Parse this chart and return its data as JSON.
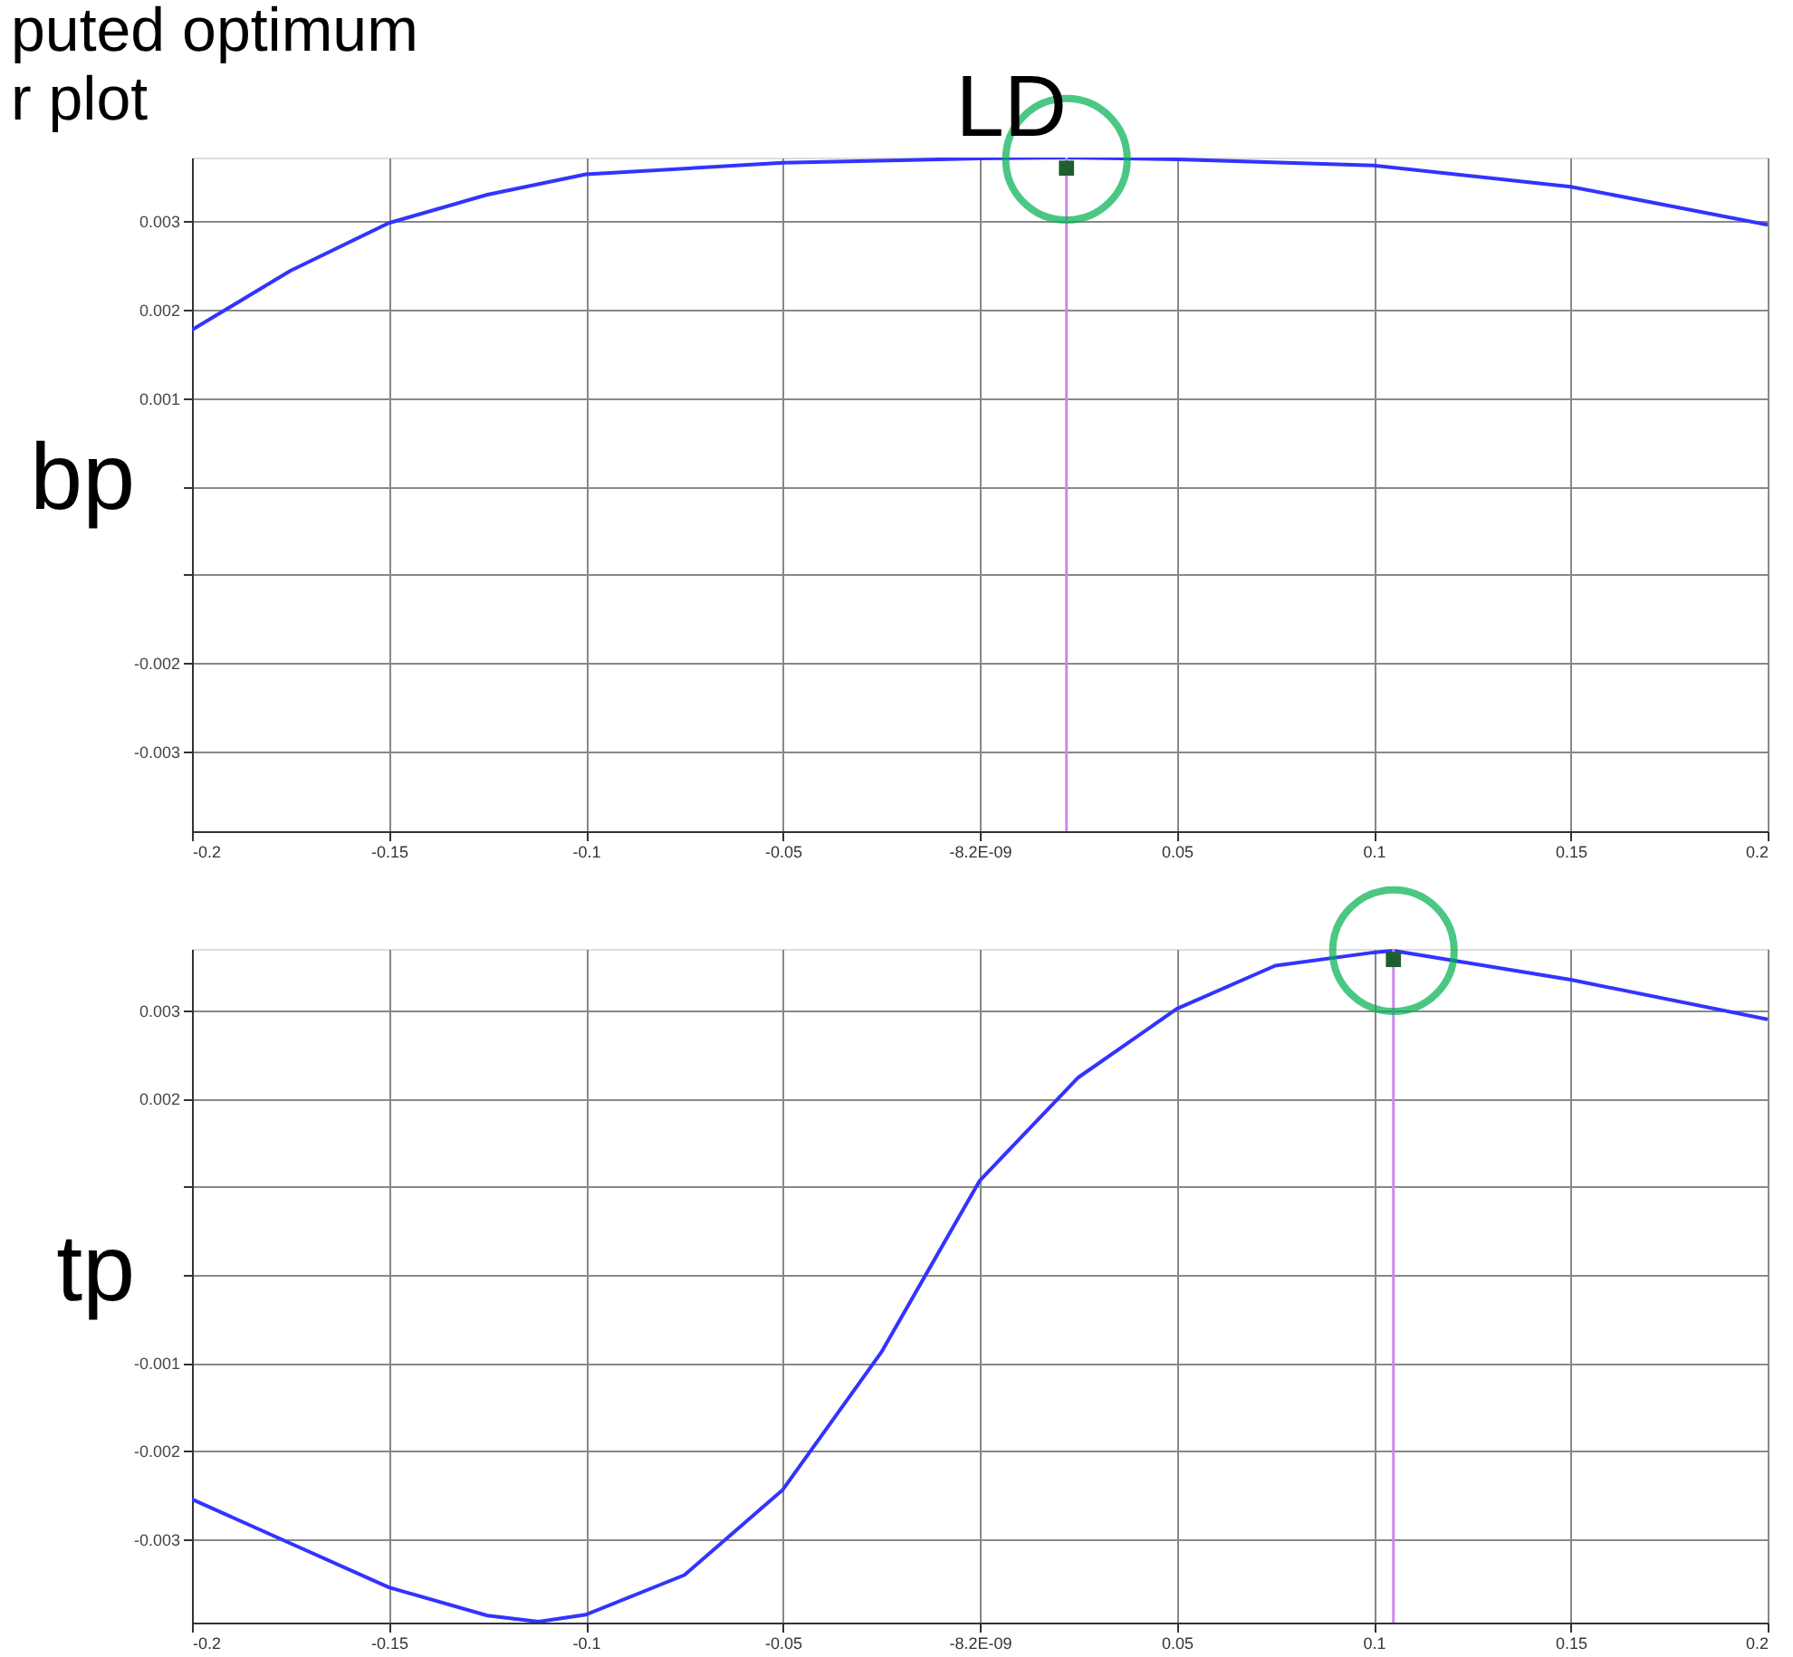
{
  "chart_data": [
    {
      "type": "line",
      "title": "puted optimum\nr plot",
      "ylabel": "bp",
      "annotations": [
        "LD"
      ],
      "grid": true,
      "xlim": [
        -0.2,
        0.2
      ],
      "ylim": [
        -0.0039,
        0.00372
      ],
      "xticks": [
        -0.2,
        -0.15,
        -0.1,
        -0.05,
        {
          "value": -8.2e-09,
          "label": "-8.2E-09"
        },
        0.05,
        0.1,
        0.15,
        0.2
      ],
      "yticks": [
        -0.003,
        -0.002,
        {
          "value": -0.001,
          "label": null
        },
        {
          "value": 0,
          "label": null
        },
        0.001,
        0.002,
        0.003
      ],
      "series": [
        {
          "color": "#3333ff",
          "x": [
            -0.2,
            -0.175,
            -0.15,
            -0.125,
            -0.1,
            -0.05,
            0,
            0.022,
            0.05,
            0.1,
            0.15,
            0.2
          ],
          "values": [
            0.00177,
            0.00244,
            0.00298,
            0.0033,
            0.00353,
            0.00366,
            0.00371,
            0.00372,
            0.0037,
            0.00363,
            0.00339,
            0.00296
          ]
        },
        {
          "type": "scatter",
          "marker": "square",
          "color": "#1f5f2f",
          "x": [
            0.022
          ],
          "values": [
            0.0036
          ]
        },
        {
          "type": "scatter",
          "marker": "circle",
          "color": "#00b050",
          "x": [
            0.022
          ],
          "values": [
            0.0037
          ]
        }
      ],
      "ref_lines": [
        {
          "axis": "x",
          "value": 0.022,
          "color": "#cc88ee"
        }
      ]
    },
    {
      "type": "line",
      "ylabel": "tp",
      "grid": true,
      "xlim": [
        -0.2,
        0.2
      ],
      "ylim": [
        -0.00395,
        0.0037
      ],
      "xticks": [
        -0.2,
        -0.15,
        -0.1,
        -0.05,
        {
          "value": -8.2e-09,
          "label": "-8.2E-09"
        },
        0.05,
        0.1,
        0.15,
        0.2
      ],
      "yticks": [
        -0.003,
        -0.002,
        -0.001,
        {
          "value": 0,
          "label": null
        },
        {
          "value": 0.001,
          "label": null
        },
        0.002,
        0.003
      ],
      "series": [
        {
          "color": "#3333ff",
          "x": [
            -0.2,
            -0.175,
            -0.15,
            -0.125,
            -0.112,
            -0.1,
            -0.075,
            -0.05,
            -0.025,
            0,
            0.025,
            0.05,
            0.075,
            0.1,
            0.105,
            0.15,
            0.2
          ],
          "values": [
            -0.00255,
            -0.00305,
            -0.00355,
            -0.00387,
            -0.00394,
            -0.00386,
            -0.00341,
            -0.00244,
            -0.00088,
            0.00107,
            0.00224,
            0.00302,
            0.00351,
            0.00366,
            0.00368,
            0.00335,
            0.0029
          ]
        },
        {
          "type": "scatter",
          "marker": "square",
          "color": "#1f5f2f",
          "x": [
            0.105
          ],
          "values": [
            0.00358
          ]
        },
        {
          "type": "scatter",
          "marker": "circle",
          "color": "#00b050",
          "x": [
            0.105
          ],
          "values": [
            0.00368
          ]
        }
      ],
      "ref_lines": [
        {
          "axis": "x",
          "value": 0.105,
          "color": "#cc88ee"
        }
      ]
    }
  ]
}
